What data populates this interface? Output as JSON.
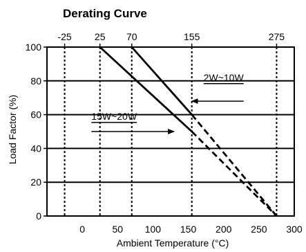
{
  "chart_data": {
    "type": "line",
    "title": "Derating Curve",
    "xlabel": "Ambient Temperature (°C)",
    "ylabel": "Load Factor (%)",
    "xlim": [
      -50,
      300
    ],
    "ylim": [
      0,
      100
    ],
    "x_ticks": [
      0,
      50,
      100,
      150,
      200,
      250,
      300
    ],
    "y_ticks": [
      0,
      20,
      40,
      60,
      80,
      100
    ],
    "top_ticks": [
      -25,
      25,
      70,
      155,
      275
    ],
    "vertical_gridlines": [
      -25,
      25,
      70,
      155,
      275
    ],
    "grid": true,
    "series": [
      {
        "name": "2W~10W",
        "points": [
          [
            70,
            100
          ],
          [
            155,
            60
          ],
          [
            275,
            0
          ]
        ],
        "dashed_from_x": 155
      },
      {
        "name": "15W~20W",
        "points": [
          [
            25,
            100
          ],
          [
            155,
            50
          ],
          [
            275,
            0
          ]
        ],
        "dashed_from_x": 155
      }
    ],
    "annotations": [
      {
        "text": "2W~10W",
        "arrow_to": [
          155,
          68
        ],
        "text_at": [
          200,
          80
        ]
      },
      {
        "text": "15W~20W",
        "arrow_to": [
          130,
          50
        ],
        "text_at": [
          45,
          57
        ]
      }
    ]
  }
}
